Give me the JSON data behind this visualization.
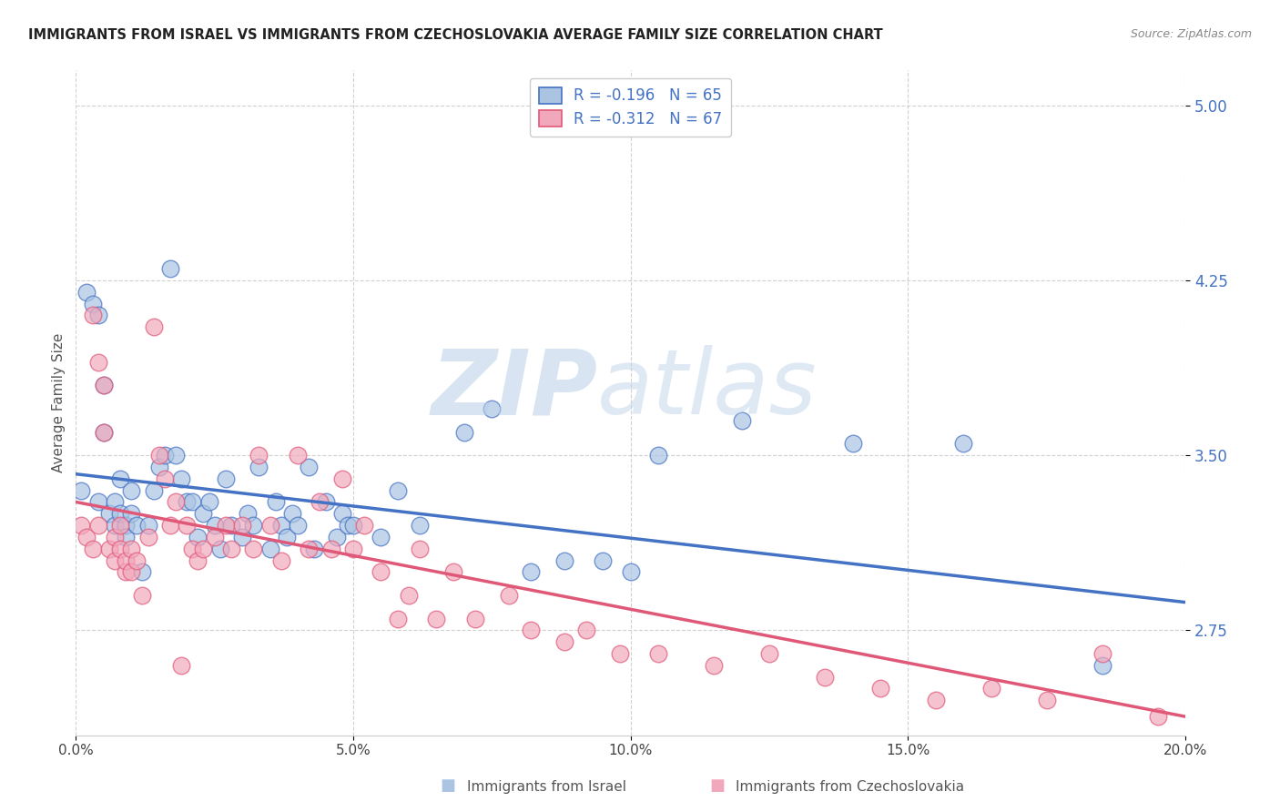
{
  "title": "IMMIGRANTS FROM ISRAEL VS IMMIGRANTS FROM CZECHOSLOVAKIA AVERAGE FAMILY SIZE CORRELATION CHART",
  "source": "Source: ZipAtlas.com",
  "ylabel": "Average Family Size",
  "xlim": [
    0.0,
    0.2
  ],
  "ylim": [
    2.3,
    5.15
  ],
  "ytick_positions": [
    2.75,
    3.5,
    4.25,
    5.0
  ],
  "ytick_labels": [
    "2.75",
    "3.50",
    "4.25",
    "5.00"
  ],
  "xticks": [
    0.0,
    0.05,
    0.1,
    0.15,
    0.2
  ],
  "xtick_labels": [
    "0.0%",
    "5.0%",
    "10.0%",
    "15.0%",
    "20.0%"
  ],
  "color_israel": "#aac4e2",
  "color_czech": "#f2a8bc",
  "color_israel_line": "#4472c4",
  "color_czech_line": "#e05878",
  "legend_text_color": "#4472c4",
  "background_color": "#ffffff",
  "watermark_zip": "ZIP",
  "watermark_atlas": "atlas",
  "watermark_color_zip": "#b8cfe8",
  "watermark_color_atlas": "#b8cfe8",
  "legend_israel_label": "R = -0.196   N = 65",
  "legend_czech_label": "R = -0.312   N = 67",
  "bottom_legend_israel": "Immigrants from Israel",
  "bottom_legend_czech": "Immigrants from Czechoslovakia",
  "israel_line_y0": 3.42,
  "israel_line_y1": 2.87,
  "czech_line_y0": 3.3,
  "czech_line_y1": 2.38,
  "israel_x": [
    0.001,
    0.002,
    0.003,
    0.004,
    0.004,
    0.005,
    0.005,
    0.006,
    0.007,
    0.007,
    0.008,
    0.008,
    0.009,
    0.009,
    0.01,
    0.01,
    0.011,
    0.012,
    0.013,
    0.014,
    0.015,
    0.016,
    0.017,
    0.018,
    0.019,
    0.02,
    0.021,
    0.022,
    0.023,
    0.024,
    0.025,
    0.026,
    0.027,
    0.028,
    0.03,
    0.031,
    0.032,
    0.033,
    0.035,
    0.036,
    0.037,
    0.038,
    0.039,
    0.04,
    0.042,
    0.043,
    0.045,
    0.047,
    0.048,
    0.049,
    0.05,
    0.055,
    0.058,
    0.062,
    0.07,
    0.075,
    0.082,
    0.088,
    0.095,
    0.1,
    0.105,
    0.12,
    0.14,
    0.16,
    0.185
  ],
  "israel_y": [
    3.35,
    4.2,
    4.15,
    3.3,
    4.1,
    3.8,
    3.6,
    3.25,
    3.2,
    3.3,
    3.25,
    3.4,
    3.2,
    3.15,
    3.25,
    3.35,
    3.2,
    3.0,
    3.2,
    3.35,
    3.45,
    3.5,
    4.3,
    3.5,
    3.4,
    3.3,
    3.3,
    3.15,
    3.25,
    3.3,
    3.2,
    3.1,
    3.4,
    3.2,
    3.15,
    3.25,
    3.2,
    3.45,
    3.1,
    3.3,
    3.2,
    3.15,
    3.25,
    3.2,
    3.45,
    3.1,
    3.3,
    3.15,
    3.25,
    3.2,
    3.2,
    3.15,
    3.35,
    3.2,
    3.6,
    3.7,
    3.0,
    3.05,
    3.05,
    3.0,
    3.5,
    3.65,
    3.55,
    3.55,
    2.6
  ],
  "czech_x": [
    0.001,
    0.002,
    0.003,
    0.003,
    0.004,
    0.004,
    0.005,
    0.005,
    0.006,
    0.007,
    0.007,
    0.008,
    0.008,
    0.009,
    0.009,
    0.01,
    0.01,
    0.011,
    0.012,
    0.013,
    0.014,
    0.015,
    0.016,
    0.017,
    0.018,
    0.019,
    0.02,
    0.021,
    0.022,
    0.023,
    0.025,
    0.027,
    0.028,
    0.03,
    0.032,
    0.033,
    0.035,
    0.037,
    0.04,
    0.042,
    0.044,
    0.046,
    0.048,
    0.05,
    0.052,
    0.055,
    0.058,
    0.06,
    0.062,
    0.065,
    0.068,
    0.072,
    0.078,
    0.082,
    0.088,
    0.092,
    0.098,
    0.105,
    0.115,
    0.125,
    0.135,
    0.145,
    0.155,
    0.165,
    0.175,
    0.185,
    0.195
  ],
  "czech_y": [
    3.2,
    3.15,
    4.1,
    3.1,
    3.9,
    3.2,
    3.8,
    3.6,
    3.1,
    3.15,
    3.05,
    3.2,
    3.1,
    3.0,
    3.05,
    3.1,
    3.0,
    3.05,
    2.9,
    3.15,
    4.05,
    3.5,
    3.4,
    3.2,
    3.3,
    2.6,
    3.2,
    3.1,
    3.05,
    3.1,
    3.15,
    3.2,
    3.1,
    3.2,
    3.1,
    3.5,
    3.2,
    3.05,
    3.5,
    3.1,
    3.3,
    3.1,
    3.4,
    3.1,
    3.2,
    3.0,
    2.8,
    2.9,
    3.1,
    2.8,
    3.0,
    2.8,
    2.9,
    2.75,
    2.7,
    2.75,
    2.65,
    2.65,
    2.6,
    2.65,
    2.55,
    2.5,
    2.45,
    2.5,
    2.45,
    2.65,
    2.38
  ]
}
